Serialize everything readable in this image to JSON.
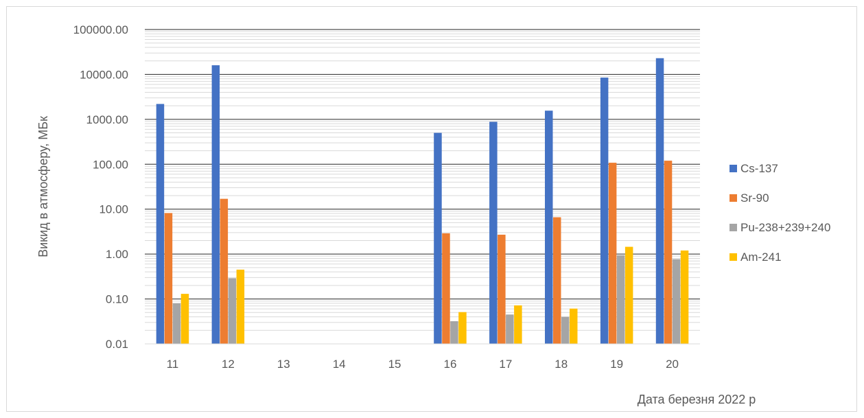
{
  "chart_data": {
    "type": "bar",
    "scale": "log",
    "title": "",
    "xlabel": "Дата березня 2022 р",
    "ylabel": "Викид в атмосферу, МБк",
    "ylim": [
      0.01,
      100000
    ],
    "yticks": [
      "0.01",
      "0.10",
      "1.00",
      "10.00",
      "100.00",
      "1000.00",
      "10000.00",
      "100000.00"
    ],
    "grid": true,
    "legend_position": "right",
    "categories": [
      "11",
      "12",
      "13",
      "14",
      "15",
      "16",
      "17",
      "18",
      "19",
      "20"
    ],
    "series": [
      {
        "name": "Cs-137",
        "color": "#4472C4",
        "values": [
          2200,
          16000,
          null,
          null,
          null,
          500,
          880,
          1560,
          8500,
          23000
        ]
      },
      {
        "name": "Sr-90",
        "color": "#ED7D31",
        "values": [
          8.2,
          17,
          null,
          null,
          null,
          2.9,
          2.7,
          6.6,
          108,
          120
        ]
      },
      {
        "name": "Pu-238+239+240",
        "color": "#A5A5A5",
        "values": [
          0.08,
          0.29,
          null,
          null,
          null,
          0.032,
          0.045,
          0.04,
          0.94,
          0.77
        ]
      },
      {
        "name": "Am-241",
        "color": "#FFC000",
        "values": [
          0.13,
          0.45,
          null,
          null,
          null,
          0.051,
          0.072,
          0.061,
          1.45,
          1.2
        ]
      }
    ]
  }
}
